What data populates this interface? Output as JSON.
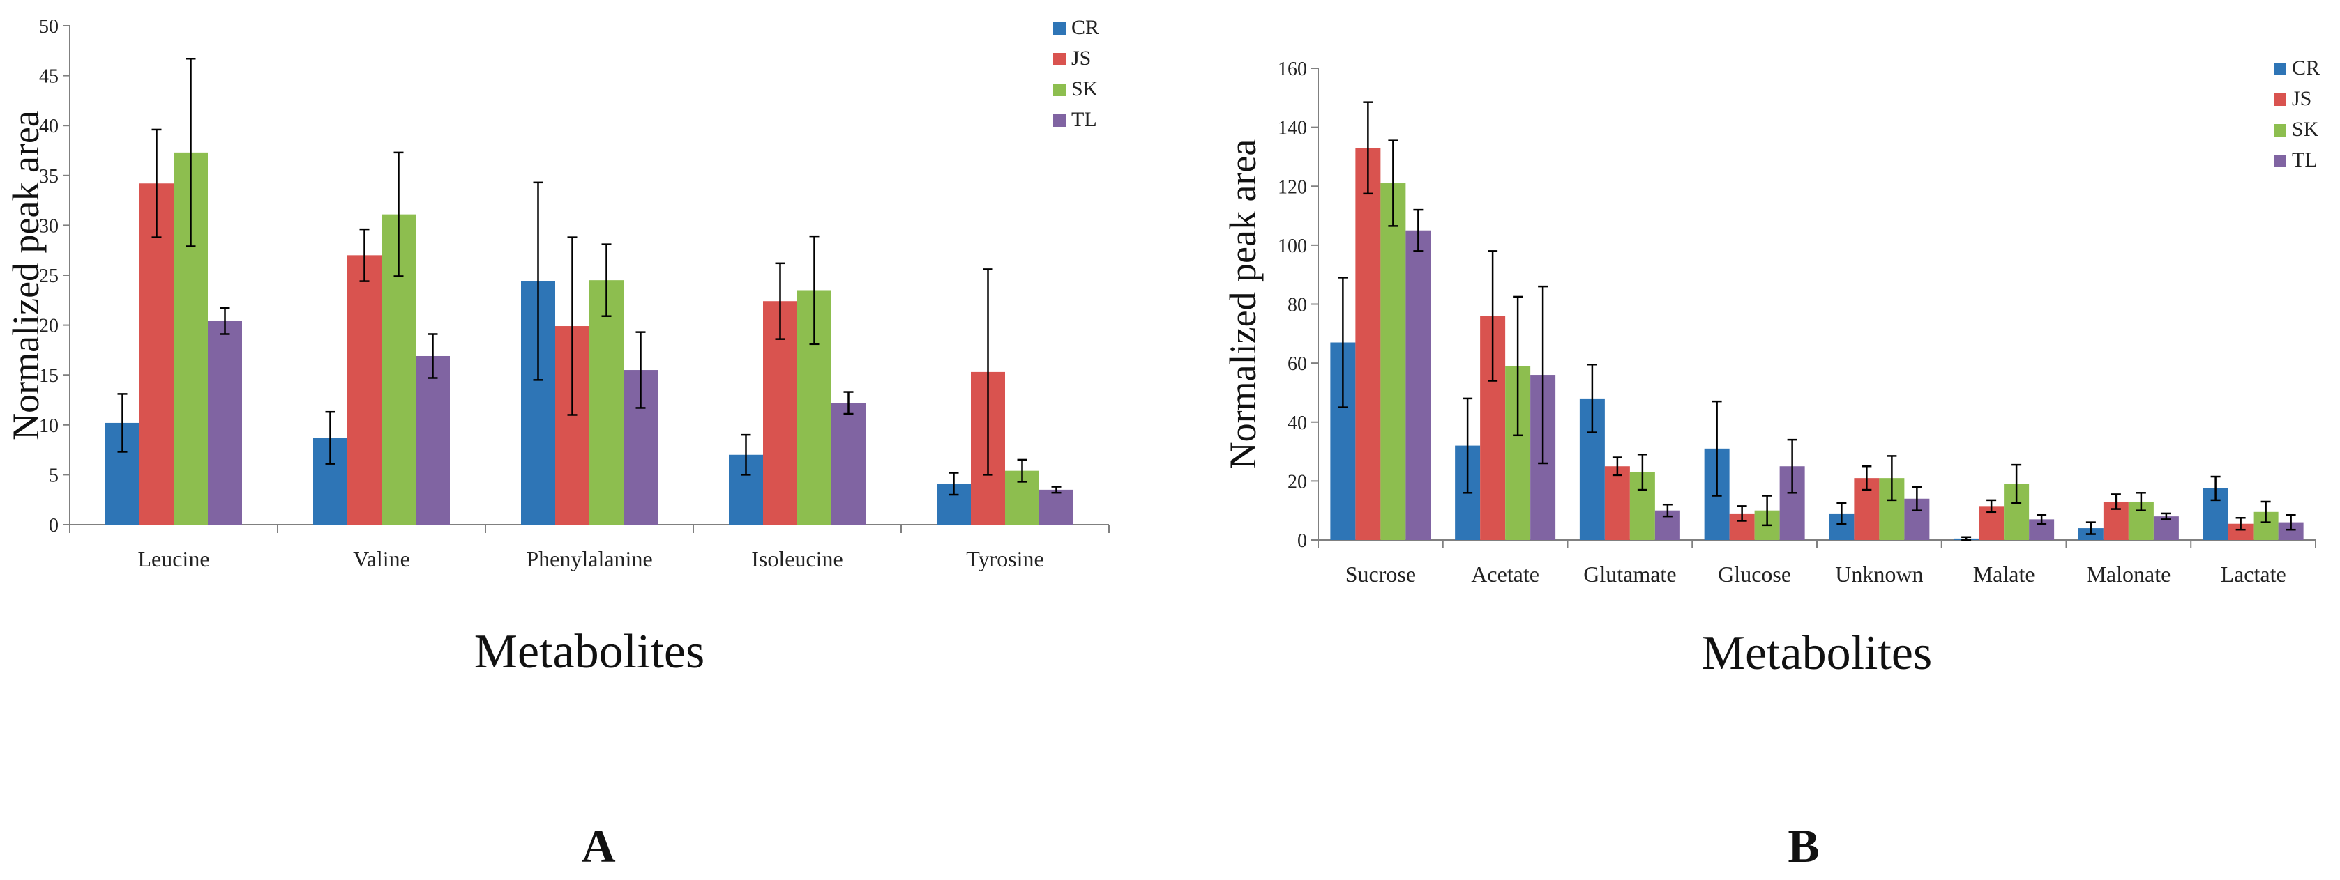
{
  "colors": {
    "CR": "#2E75B6",
    "JS": "#D9534F",
    "SK": "#8DBE4F",
    "TL": "#8064A2"
  },
  "chart_data": [
    {
      "panel": "A",
      "type": "bar",
      "xlabel": "Metabolites",
      "ylabel": "Normalized peak area",
      "ylim": [
        0,
        50
      ],
      "yticks": [
        0,
        5,
        10,
        15,
        20,
        25,
        30,
        35,
        40,
        45,
        50
      ],
      "grid": false,
      "legend_position": "top-right",
      "categories": [
        "Leucine",
        "Valine",
        "Phenylalanine",
        "Isoleucine",
        "Tyrosine"
      ],
      "series": [
        {
          "name": "CR",
          "values": [
            10.2,
            8.7,
            24.4,
            7.0,
            4.1
          ],
          "errors": [
            2.9,
            2.6,
            9.9,
            2.0,
            1.1
          ]
        },
        {
          "name": "JS",
          "values": [
            34.2,
            27.0,
            19.9,
            22.4,
            15.3
          ],
          "errors": [
            5.4,
            2.6,
            8.9,
            3.8,
            10.3
          ]
        },
        {
          "name": "SK",
          "values": [
            37.3,
            31.1,
            24.5,
            23.5,
            5.4
          ],
          "errors": [
            9.4,
            6.2,
            3.6,
            5.4,
            1.1
          ]
        },
        {
          "name": "TL",
          "values": [
            20.4,
            16.9,
            15.5,
            12.2,
            3.5
          ],
          "errors": [
            1.3,
            2.2,
            3.8,
            1.1,
            0.3
          ]
        }
      ]
    },
    {
      "panel": "B",
      "type": "bar",
      "xlabel": "Metabolites",
      "ylabel": "Normalized peak area",
      "ylim": [
        0,
        160
      ],
      "yticks": [
        0,
        20,
        40,
        60,
        80,
        100,
        120,
        140,
        160
      ],
      "grid": false,
      "legend_position": "top-right",
      "categories": [
        "Sucrose",
        "Acetate",
        "Glutamate",
        "Glucose",
        "Unknown",
        "Malate",
        "Malonate",
        "Lactate"
      ],
      "series": [
        {
          "name": "CR",
          "values": [
            67,
            32,
            48,
            31,
            9,
            0.5,
            4,
            17.5
          ],
          "errors": [
            22,
            16,
            11.5,
            16,
            3.5,
            0.5,
            2,
            4
          ]
        },
        {
          "name": "JS",
          "values": [
            133,
            76,
            25,
            9,
            21,
            11.5,
            13,
            5.5
          ],
          "errors": [
            15.5,
            22,
            3,
            2.5,
            4,
            2,
            2.5,
            2
          ]
        },
        {
          "name": "SK",
          "values": [
            121,
            59,
            23,
            10,
            21,
            19,
            13,
            9.5
          ],
          "errors": [
            14.5,
            23.5,
            6,
            5,
            7.5,
            6.5,
            3,
            3.5
          ]
        },
        {
          "name": "TL",
          "values": [
            105,
            56,
            10,
            25,
            14,
            7,
            8,
            6
          ],
          "errors": [
            7,
            30,
            2,
            9,
            4,
            1.5,
            1,
            2.5
          ]
        }
      ]
    }
  ],
  "panel_labels": {
    "A": "A",
    "B": "B"
  }
}
